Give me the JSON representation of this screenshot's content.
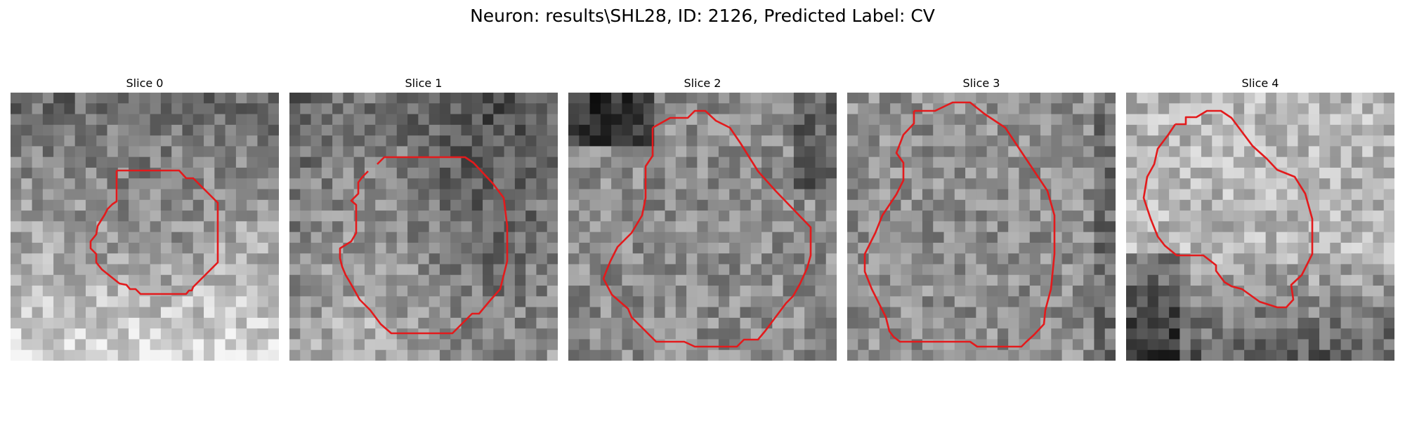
{
  "figure": {
    "title": "Neuron: results\\SHL28, ID: 2126, Predicted Label: CV",
    "contour_color": "#e31a1c",
    "slices": [
      {
        "title": "Slice 0",
        "background_tone": "dark-top, bright-bottom",
        "outline": "small rounded octagon, centered"
      },
      {
        "title": "Slice 1",
        "background_tone": "dark-top, mid-gray body",
        "outline": "large rounded polygon, centered"
      },
      {
        "title": "Slice 2",
        "background_tone": "dark top-left and right edge",
        "outline": "large polygon, open at bottom"
      },
      {
        "title": "Slice 3",
        "background_tone": "mid-gray, dark right edge",
        "outline": "large polygon, rectangular bottom"
      },
      {
        "title": "Slice 4",
        "background_tone": "bright top, dark bottom-left",
        "outline": "irregular with left notch"
      }
    ]
  }
}
